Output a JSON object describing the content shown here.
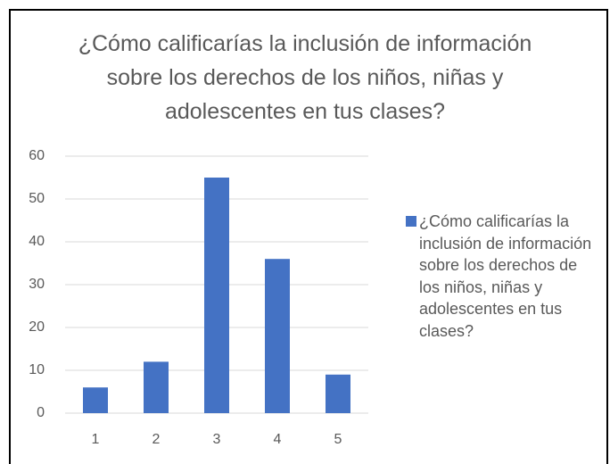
{
  "chart_data": {
    "type": "bar",
    "title": "¿Cómo calificarías la inclusión de información sobre los derechos de los niños, niñas y adolescentes en tus clases?",
    "categories": [
      "1",
      "2",
      "3",
      "4",
      "5"
    ],
    "series": [
      {
        "name": "¿Cómo calificarías la inclusión de información sobre los derechos de los niños, niñas y adolescentes en tus clases?",
        "color": "#4472c4",
        "values": [
          6,
          12,
          55,
          36,
          9
        ]
      }
    ],
    "ylim": [
      0,
      60
    ],
    "yticks": [
      0,
      10,
      20,
      30,
      40,
      50,
      60
    ],
    "grid": true,
    "legend": "right"
  }
}
